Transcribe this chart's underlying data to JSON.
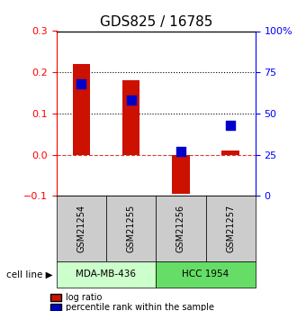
{
  "title": "GDS825 / 16785",
  "samples": [
    "GSM21254",
    "GSM21255",
    "GSM21256",
    "GSM21257"
  ],
  "log_ratios": [
    0.22,
    0.18,
    -0.095,
    0.01
  ],
  "percentile_ranks": [
    0.68,
    0.58,
    0.27,
    0.43
  ],
  "cell_lines": [
    {
      "label": "MDA-MB-436",
      "samples": [
        0,
        1
      ],
      "color": "#ccffcc"
    },
    {
      "label": "HCC 1954",
      "samples": [
        2,
        3
      ],
      "color": "#66dd66"
    }
  ],
  "ylim": [
    -0.1,
    0.3
  ],
  "y2lim": [
    0,
    1.0
  ],
  "yticks_left": [
    -0.1,
    0.0,
    0.1,
    0.2,
    0.3
  ],
  "yticks_right": [
    0.0,
    0.25,
    0.5,
    0.75,
    1.0
  ],
  "ytick_labels_right": [
    "0",
    "25",
    "50",
    "75",
    "100%"
  ],
  "dotted_lines": [
    0.1,
    0.2
  ],
  "bar_color": "#cc1100",
  "dot_color": "#0000cc",
  "bar_width": 0.35,
  "dot_size": 55,
  "legend_red": "log ratio",
  "legend_blue": "percentile rank within the sample",
  "cell_line_label": "cell line",
  "title_fontsize": 11,
  "tick_fontsize": 8
}
